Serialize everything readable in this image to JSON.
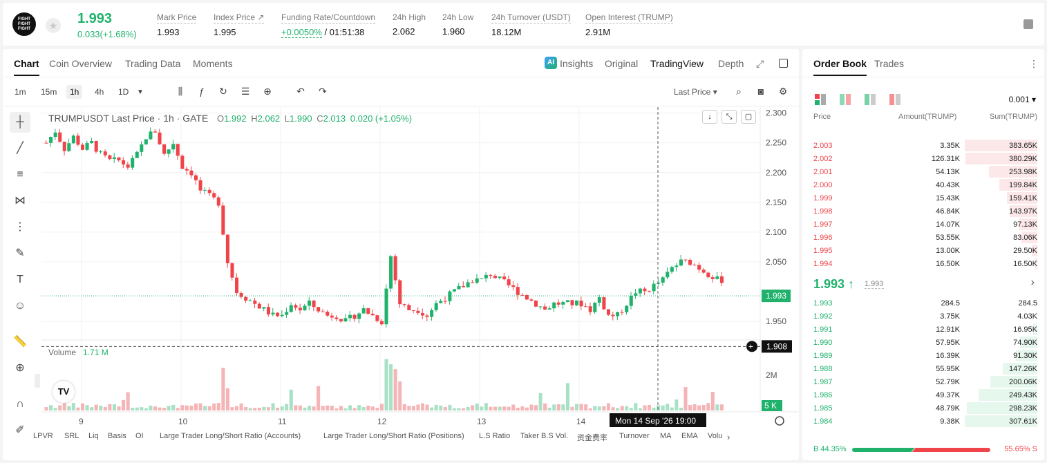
{
  "header": {
    "logo_text": "FIGHT FIGHT FIGHT",
    "last_price": "1.993",
    "change": "0.033(+1.68%)",
    "stats": [
      {
        "label": "Mark Price",
        "value": "1.993"
      },
      {
        "label": "Index Price ↗",
        "value": "1.995"
      },
      {
        "label": "Funding Rate/Countdown",
        "value_green": "+0.0050%",
        "value": "/ 01:51:38"
      },
      {
        "label": "24h High",
        "value": "2.062"
      },
      {
        "label": "24h Low",
        "value": "1.960"
      },
      {
        "label": "24h Turnover (USDT)",
        "value": "18.12M"
      },
      {
        "label": "Open Interest (TRUMP)",
        "value": "2.91M"
      }
    ]
  },
  "chart_tabs": [
    "Chart",
    "Coin Overview",
    "Trading Data",
    "Moments"
  ],
  "chart_tabs_right": [
    "Insights",
    "Original",
    "TradingView",
    "Depth"
  ],
  "ai_badge": "AI",
  "timeframes": [
    "1m",
    "15m",
    "1h",
    "4h",
    "1D"
  ],
  "price_type": "Last Price ▾",
  "ohlc": {
    "symbol": "TRUMPUSDT Last Price · 1h · GATE",
    "o_label": "O",
    "o": "1.992",
    "h_label": "H",
    "h": "2.062",
    "l_label": "L",
    "l": "1.990",
    "c_label": "C",
    "c": "2.013",
    "chg": "0.020 (+1.05%)"
  },
  "volume": {
    "label": "Volume",
    "value": "1.71 M"
  },
  "crosshair": {
    "price": "1.908",
    "time": "Mon 14 Sep '26   19:00"
  },
  "current_price_label": "1.993",
  "volume_axis": [
    "2M",
    "5 K"
  ],
  "tv_logo": "TV",
  "indicators": [
    "LPVR",
    "SRL",
    "Liq",
    "Basis",
    "OI",
    "Large Trader Long/Short Ratio (Accounts)",
    "Large Trader Long/Short Ratio (Positions)",
    "L.S Ratio",
    "Taker B.S Vol.",
    "资金费率",
    "Turnover",
    "MA",
    "EMA",
    "Volu"
  ],
  "chart_data": {
    "type": "candlestick",
    "x_ticks": [
      "9",
      "10",
      "11",
      "12",
      "13",
      "14"
    ],
    "y_ticks": [
      "2.300",
      "2.250",
      "2.200",
      "2.150",
      "2.100",
      "2.050",
      "1.950"
    ],
    "ylim": [
      1.92,
      2.31
    ],
    "series_close": [
      2.25,
      2.27,
      2.24,
      2.26,
      2.24,
      2.25,
      2.23,
      2.22,
      2.22,
      2.21,
      2.23,
      2.26,
      2.27,
      2.23,
      2.25,
      2.21,
      2.2,
      2.17,
      2.16,
      2.15,
      2.05,
      2.0,
      1.99,
      1.98,
      1.97,
      1.96,
      1.96,
      1.98,
      1.97,
      1.98,
      1.97,
      1.96,
      1.96,
      1.95,
      1.96,
      1.97,
      1.96,
      1.95,
      2.06,
      1.98,
      1.97,
      1.97,
      1.96,
      1.98,
      1.99,
      2.0,
      2.01,
      2.02,
      2.02,
      2.03,
      2.02,
      2.01,
      2.0,
      1.99,
      1.98,
      1.97,
      1.98,
      1.98,
      1.98,
      1.98,
      1.97,
      1.99,
      1.96,
      1.96,
      1.98,
      2.0,
      2.0,
      2.01,
      2.02,
      2.04,
      2.05,
      2.05,
      2.04,
      2.03,
      2.02
    ]
  },
  "orderbook": {
    "tabs": [
      "Order Book",
      "Trades"
    ],
    "precision": "0.001 ▾",
    "headers": [
      "Price",
      "Amount(TRUMP)",
      "Sum(TRUMP)"
    ],
    "asks": [
      {
        "p": "2.003",
        "a": "3.35K",
        "s": "383.65K",
        "f": 1.0
      },
      {
        "p": "2.002",
        "a": "126.31K",
        "s": "380.29K",
        "f": 0.99
      },
      {
        "p": "2.001",
        "a": "54.13K",
        "s": "253.98K",
        "f": 0.67
      },
      {
        "p": "2.000",
        "a": "40.43K",
        "s": "199.84K",
        "f": 0.52
      },
      {
        "p": "1.999",
        "a": "15.43K",
        "s": "159.41K",
        "f": 0.42
      },
      {
        "p": "1.998",
        "a": "46.84K",
        "s": "143.97K",
        "f": 0.38
      },
      {
        "p": "1.997",
        "a": "14.07K",
        "s": "97.13K",
        "f": 0.25
      },
      {
        "p": "1.996",
        "a": "53.55K",
        "s": "83.06K",
        "f": 0.22
      },
      {
        "p": "1.995",
        "a": "13.00K",
        "s": "29.50K",
        "f": 0.08
      },
      {
        "p": "1.994",
        "a": "16.50K",
        "s": "16.50K",
        "f": 0.04
      }
    ],
    "mid_price": "1.993 ↑",
    "mid_mark": "1.993",
    "bids": [
      {
        "p": "1.993",
        "a": "284.5",
        "s": "284.5",
        "f": 0.01
      },
      {
        "p": "1.992",
        "a": "3.75K",
        "s": "4.03K",
        "f": 0.01
      },
      {
        "p": "1.991",
        "a": "12.91K",
        "s": "16.95K",
        "f": 0.06
      },
      {
        "p": "1.990",
        "a": "57.95K",
        "s": "74.90K",
        "f": 0.24
      },
      {
        "p": "1.989",
        "a": "16.39K",
        "s": "91.30K",
        "f": 0.3
      },
      {
        "p": "1.988",
        "a": "55.95K",
        "s": "147.26K",
        "f": 0.48
      },
      {
        "p": "1.987",
        "a": "52.79K",
        "s": "200.06K",
        "f": 0.65
      },
      {
        "p": "1.986",
        "a": "49.37K",
        "s": "249.43K",
        "f": 0.81
      },
      {
        "p": "1.985",
        "a": "48.79K",
        "s": "298.23K",
        "f": 0.97
      },
      {
        "p": "1.984",
        "a": "9.38K",
        "s": "307.61K",
        "f": 1.0
      }
    ],
    "buy_ratio": "B 44.35%",
    "sell_ratio": "55.65% S",
    "buy_fraction": 0.4435
  },
  "colors": {
    "up": "#20b26c",
    "down": "#ef454a",
    "up_bar": "#e6f7ee",
    "down_bar": "#fde8e9"
  }
}
